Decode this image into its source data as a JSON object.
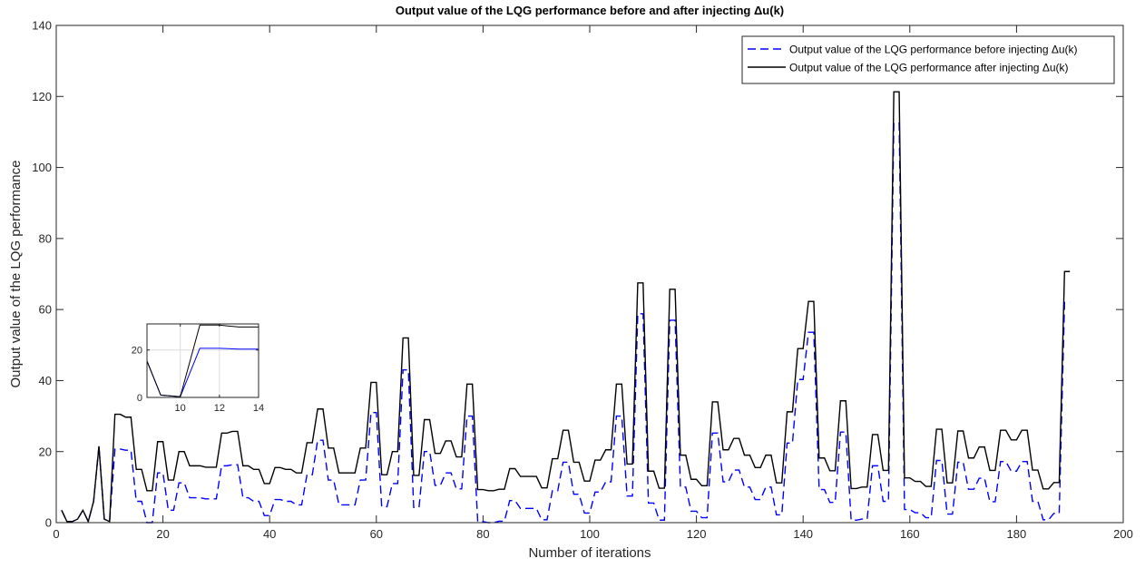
{
  "chart_data": [
    {
      "type": "line",
      "title": "Output value of the LQG performance before and after injecting Δu(k)",
      "xlabel": "Number of iterations",
      "ylabel": "Output value of the LQG performance",
      "xlim": [
        0,
        200
      ],
      "ylim": [
        0,
        140
      ],
      "xticks": [
        0,
        20,
        40,
        60,
        80,
        100,
        120,
        140,
        160,
        180,
        200
      ],
      "yticks": [
        0,
        20,
        40,
        60,
        80,
        100,
        120,
        140
      ],
      "grid": false,
      "legend": "northeast",
      "x": [
        1,
        2,
        3,
        4,
        5,
        6,
        7,
        8,
        9,
        10,
        11,
        12,
        13,
        14,
        15,
        16,
        17,
        18,
        19,
        20,
        21,
        22,
        23,
        24,
        25,
        26,
        27,
        28,
        29,
        30,
        31,
        32,
        33,
        34,
        35,
        36,
        37,
        38,
        39,
        40,
        41,
        42,
        43,
        44,
        45,
        46,
        47,
        48,
        49,
        50,
        51,
        52,
        53,
        54,
        55,
        56,
        57,
        58,
        59,
        60,
        61,
        62,
        63,
        64,
        65,
        66,
        67,
        68,
        69,
        70,
        71,
        72,
        73,
        74,
        75,
        76,
        77,
        78,
        79,
        80,
        81,
        82,
        83,
        84,
        85,
        86,
        87,
        88,
        89,
        90,
        91,
        92,
        93,
        94,
        95,
        96,
        97,
        98,
        99,
        100,
        101,
        102,
        103,
        104,
        105,
        106,
        107,
        108,
        109,
        110,
        111,
        112,
        113,
        114,
        115,
        116,
        117,
        118,
        119,
        120,
        121,
        122,
        123,
        124,
        125,
        126,
        127,
        128,
        129,
        130,
        131,
        132,
        133,
        134,
        135,
        136,
        137,
        138,
        139,
        140,
        141,
        142,
        143,
        144,
        145,
        146,
        147,
        148,
        149,
        150,
        151,
        152,
        153,
        154,
        155,
        156,
        157,
        158,
        159,
        160,
        161,
        162,
        163,
        164,
        165,
        166,
        167,
        168,
        169,
        170,
        171,
        172,
        173,
        174,
        175,
        176,
        177,
        178,
        179,
        180,
        181,
        182,
        183,
        184,
        185,
        186,
        187,
        188,
        189,
        190
      ],
      "series": [
        {
          "name": "Output value of the LQG performance before injecting Δu(k)",
          "color": "#0000ff",
          "linestyle": "dashed",
          "values": [
            3.5,
            0.3,
            0.3,
            1,
            3.5,
            0.3,
            6,
            21.5,
            1,
            0.3,
            20.7,
            20.7,
            20.4,
            20.4,
            6,
            6,
            0,
            0,
            14,
            14,
            3.5,
            3.5,
            11.2,
            11.2,
            7,
            7,
            7,
            6.7,
            6.7,
            6.7,
            16,
            16,
            16.3,
            16.3,
            7,
            7,
            6,
            6,
            2,
            2,
            6.5,
            6.5,
            6,
            6,
            5,
            5,
            13.5,
            13.5,
            23.2,
            23.2,
            12,
            12,
            5,
            5,
            5,
            5,
            12,
            12,
            31,
            31,
            4.5,
            4.5,
            11,
            11,
            43,
            43,
            4.3,
            4.3,
            20,
            20,
            10.5,
            10.5,
            14,
            14,
            9.5,
            9.5,
            30,
            30,
            0.3,
            0.3,
            0,
            0,
            0.4,
            0.4,
            6.2,
            6.2,
            4,
            4,
            4,
            4,
            0.8,
            0.8,
            9,
            9,
            17,
            17,
            8,
            8,
            2.7,
            2.7,
            8.6,
            8.6,
            11.5,
            11.5,
            30,
            30,
            7.5,
            7.5,
            58.8,
            58.8,
            5.5,
            5.5,
            0.7,
            0.7,
            57,
            57,
            10,
            10,
            3.2,
            3.2,
            1.4,
            1.4,
            25.2,
            25.2,
            11.5,
            11.5,
            14.8,
            14.8,
            10,
            10,
            6.5,
            6.5,
            10,
            10,
            2.2,
            2.2,
            22.4,
            22.4,
            40.3,
            40.3,
            53.6,
            53.6,
            9.3,
            9.3,
            5.7,
            5.7,
            25.5,
            25.5,
            0.7,
            0.7,
            1,
            1,
            16,
            16,
            6,
            6,
            112.5,
            112.5,
            3.7,
            3.7,
            2.8,
            2.8,
            1.4,
            1.4,
            17.5,
            17.5,
            2.4,
            2.4,
            17,
            17,
            9.4,
            9.4,
            12.5,
            12.5,
            5.9,
            5.9,
            17.2,
            17.2,
            14.5,
            14.5,
            17.2,
            17.2,
            6,
            6,
            0.8,
            0.8,
            2.6,
            2.6,
            62,
            62
          ]
        },
        {
          "name": "Output value of the LQG performance after injecting Δu(k)",
          "color": "#000000",
          "linestyle": "solid",
          "values": [
            3.5,
            0.3,
            0.3,
            1,
            3.5,
            0.3,
            6,
            21.5,
            1,
            0.3,
            30.5,
            30.5,
            29.7,
            29.7,
            15,
            15,
            9,
            9,
            22.8,
            22.8,
            12,
            12,
            20,
            20,
            16,
            16,
            16,
            15.6,
            15.6,
            15.6,
            25.2,
            25.2,
            25.7,
            25.7,
            16,
            16,
            15,
            15,
            11,
            11,
            15.5,
            15.5,
            15,
            15,
            14,
            14,
            22.5,
            22.5,
            32,
            32,
            21,
            21,
            14,
            14,
            14,
            14,
            21,
            21,
            39.5,
            39.5,
            13.5,
            13.5,
            20,
            20,
            52,
            52,
            13.3,
            13.3,
            29,
            29,
            19.5,
            19.5,
            23,
            23,
            18.5,
            18.5,
            39,
            39,
            9.3,
            9.3,
            9,
            9,
            9.4,
            9.4,
            15.2,
            15.2,
            13,
            13,
            13,
            13,
            9.8,
            9.8,
            18,
            18,
            26,
            26,
            17,
            17,
            11.7,
            11.7,
            17.6,
            17.6,
            20.5,
            20.5,
            39,
            39,
            16.5,
            16.5,
            67.5,
            67.5,
            14.5,
            14.5,
            9.7,
            9.7,
            65.7,
            65.7,
            19,
            19,
            12.2,
            12.2,
            10.4,
            10.4,
            34,
            34,
            20.5,
            20.5,
            23.7,
            23.7,
            19,
            19,
            15.5,
            15.5,
            19,
            19,
            11.2,
            11.2,
            31.2,
            31.2,
            49,
            49,
            62.3,
            62.3,
            18.2,
            18.2,
            14.6,
            14.6,
            34.3,
            34.3,
            9.6,
            9.6,
            10,
            10,
            24.8,
            24.8,
            14.7,
            14.7,
            121.3,
            121.3,
            12.6,
            12.6,
            11.6,
            11.6,
            10.2,
            10.2,
            26.3,
            26.3,
            11.2,
            11.2,
            25.8,
            25.8,
            18.2,
            18.2,
            21.3,
            21.3,
            14.7,
            14.7,
            26,
            26,
            23.3,
            23.3,
            26,
            26,
            14.8,
            14.8,
            9.5,
            9.5,
            11.3,
            11.3,
            70.7,
            70.7
          ]
        }
      ]
    },
    {
      "type": "line",
      "xlim": [
        8.3,
        14
      ],
      "ylim": [
        0,
        31
      ],
      "xticks": [
        10,
        12,
        14
      ],
      "yticks": [
        0,
        20
      ],
      "grid": true,
      "x": [
        8,
        9,
        10,
        11,
        12,
        13,
        14
      ],
      "series": [
        {
          "color": "#0000ff",
          "linestyle": "solid",
          "values": [
            21.5,
            1,
            0.3,
            20.7,
            20.7,
            20.4,
            20.4
          ]
        },
        {
          "color": "#000000",
          "linestyle": "solid",
          "values": [
            21.5,
            1,
            0.3,
            30.5,
            30.5,
            29.7,
            29.7
          ]
        }
      ]
    }
  ]
}
